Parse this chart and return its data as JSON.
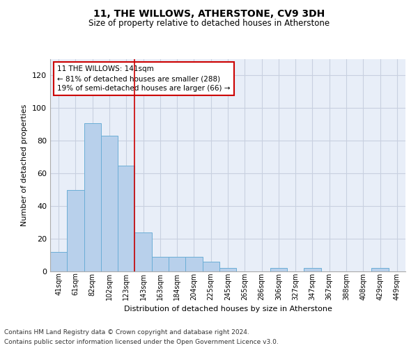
{
  "title": "11, THE WILLOWS, ATHERSTONE, CV9 3DH",
  "subtitle": "Size of property relative to detached houses in Atherstone",
  "xlabel": "Distribution of detached houses by size in Atherstone",
  "ylabel": "Number of detached properties",
  "bar_color": "#b8d0eb",
  "bar_edge_color": "#6baed6",
  "categories": [
    "41sqm",
    "61sqm",
    "82sqm",
    "102sqm",
    "123sqm",
    "143sqm",
    "163sqm",
    "184sqm",
    "204sqm",
    "225sqm",
    "245sqm",
    "265sqm",
    "286sqm",
    "306sqm",
    "327sqm",
    "347sqm",
    "367sqm",
    "388sqm",
    "408sqm",
    "429sqm",
    "449sqm"
  ],
  "values": [
    12,
    50,
    91,
    83,
    65,
    24,
    9,
    9,
    9,
    6,
    2,
    0,
    0,
    2,
    0,
    2,
    0,
    0,
    0,
    2,
    0
  ],
  "ylim": [
    0,
    130
  ],
  "yticks": [
    0,
    20,
    40,
    60,
    80,
    100,
    120
  ],
  "red_line_x": 4.5,
  "annotation_text": "11 THE WILLOWS: 141sqm\n← 81% of detached houses are smaller (288)\n19% of semi-detached houses are larger (66) →",
  "annotation_box_color": "#ffffff",
  "annotation_box_edge": "#cc0000",
  "grid_color": "#c8d0e0",
  "background_color": "#e8eef8",
  "footer_line1": "Contains HM Land Registry data © Crown copyright and database right 2024.",
  "footer_line2": "Contains public sector information licensed under the Open Government Licence v3.0."
}
